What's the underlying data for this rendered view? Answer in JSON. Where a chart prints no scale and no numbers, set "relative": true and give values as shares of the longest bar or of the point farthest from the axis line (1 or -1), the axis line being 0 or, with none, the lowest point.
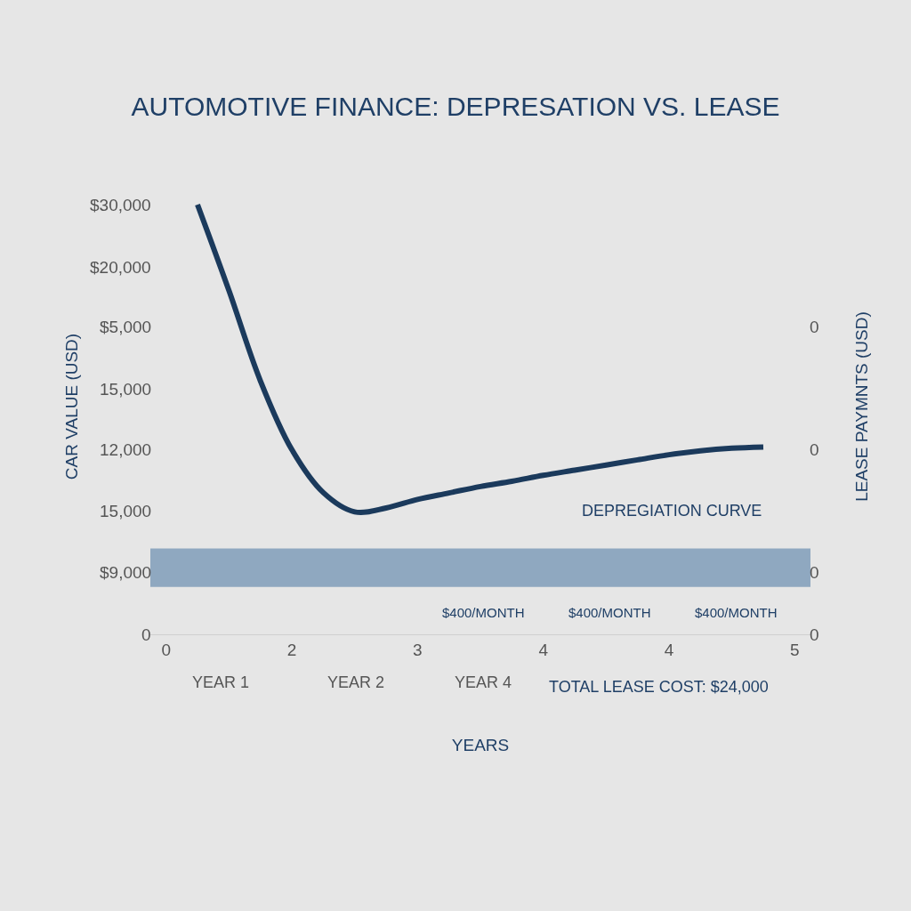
{
  "chart_data": {
    "type": "line",
    "title": "AUTOMOTIVE FINANCE: DEPRESATION VS. LEASE",
    "xlabel": "YEARS",
    "ylabel": "CAR VALUE (USD)",
    "y2label": "LEASE PAYMNTS (USD)",
    "relative": true,
    "legend": false,
    "categories": [
      "0",
      null,
      null,
      null,
      "2",
      null,
      null,
      null,
      "3",
      null,
      null,
      null,
      "4",
      null,
      null,
      null,
      "4",
      null,
      null,
      null,
      "5"
    ],
    "series": [
      {
        "color": "#1b3a5c",
        "values": [
          null,
          1,
          0.8,
          0.59,
          0.43,
          0.33,
          0.285,
          0.294,
          0.314,
          0.329,
          0.344,
          0.356,
          0.37,
          0.382,
          0.394,
          0.406,
          0.418,
          0.427,
          0.433,
          0.436,
          null
        ]
      }
    ],
    "bands": [
      {
        "axis": "y",
        "from": 0.11,
        "to": 0.2,
        "color": "#8fa8c0"
      }
    ],
    "annotations": [
      "$30,000",
      "$20,000",
      "$5,000",
      "15,000",
      "12,000",
      "15,000",
      "$9,000",
      "0",
      "0",
      "0",
      "0",
      "0",
      "$400/MONTH",
      "$400/MONTH",
      "$400/MONTH",
      "DEPREGIATION CURVE",
      "YEAR 1",
      "YEAR 2",
      "YEAR 4",
      "TOTAL LEASE COST: $24,000"
    ]
  }
}
